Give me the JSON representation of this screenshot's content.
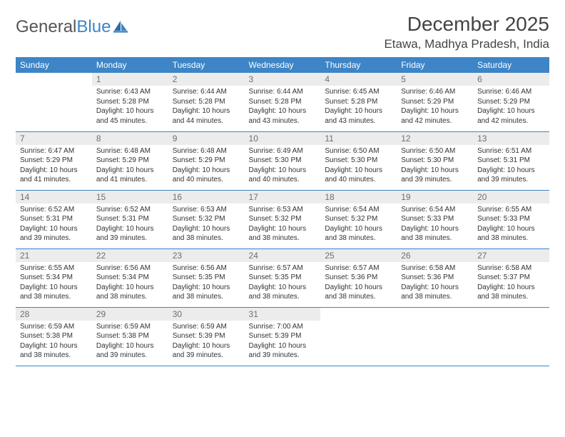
{
  "brand": {
    "name1": "General",
    "name2": "Blue"
  },
  "title": "December 2025",
  "location": "Etawa, Madhya Pradesh, India",
  "colors": {
    "accent": "#3d85c6",
    "daynum_bg": "#ececec",
    "daynum_fg": "#6f6f6f",
    "text": "#333333",
    "bg": "#ffffff"
  },
  "header_fontsize": 28,
  "location_fontsize": 17,
  "dayheader_fontsize": 12,
  "cell_fontsize": 10,
  "days_of_week": [
    "Sunday",
    "Monday",
    "Tuesday",
    "Wednesday",
    "Thursday",
    "Friday",
    "Saturday"
  ],
  "first_weekday_index": 1,
  "days": [
    {
      "n": 1,
      "sunrise": "6:43 AM",
      "sunset": "5:28 PM",
      "daylight": "10 hours and 45 minutes."
    },
    {
      "n": 2,
      "sunrise": "6:44 AM",
      "sunset": "5:28 PM",
      "daylight": "10 hours and 44 minutes."
    },
    {
      "n": 3,
      "sunrise": "6:44 AM",
      "sunset": "5:28 PM",
      "daylight": "10 hours and 43 minutes."
    },
    {
      "n": 4,
      "sunrise": "6:45 AM",
      "sunset": "5:28 PM",
      "daylight": "10 hours and 43 minutes."
    },
    {
      "n": 5,
      "sunrise": "6:46 AM",
      "sunset": "5:29 PM",
      "daylight": "10 hours and 42 minutes."
    },
    {
      "n": 6,
      "sunrise": "6:46 AM",
      "sunset": "5:29 PM",
      "daylight": "10 hours and 42 minutes."
    },
    {
      "n": 7,
      "sunrise": "6:47 AM",
      "sunset": "5:29 PM",
      "daylight": "10 hours and 41 minutes."
    },
    {
      "n": 8,
      "sunrise": "6:48 AM",
      "sunset": "5:29 PM",
      "daylight": "10 hours and 41 minutes."
    },
    {
      "n": 9,
      "sunrise": "6:48 AM",
      "sunset": "5:29 PM",
      "daylight": "10 hours and 40 minutes."
    },
    {
      "n": 10,
      "sunrise": "6:49 AM",
      "sunset": "5:30 PM",
      "daylight": "10 hours and 40 minutes."
    },
    {
      "n": 11,
      "sunrise": "6:50 AM",
      "sunset": "5:30 PM",
      "daylight": "10 hours and 40 minutes."
    },
    {
      "n": 12,
      "sunrise": "6:50 AM",
      "sunset": "5:30 PM",
      "daylight": "10 hours and 39 minutes."
    },
    {
      "n": 13,
      "sunrise": "6:51 AM",
      "sunset": "5:31 PM",
      "daylight": "10 hours and 39 minutes."
    },
    {
      "n": 14,
      "sunrise": "6:52 AM",
      "sunset": "5:31 PM",
      "daylight": "10 hours and 39 minutes."
    },
    {
      "n": 15,
      "sunrise": "6:52 AM",
      "sunset": "5:31 PM",
      "daylight": "10 hours and 39 minutes."
    },
    {
      "n": 16,
      "sunrise": "6:53 AM",
      "sunset": "5:32 PM",
      "daylight": "10 hours and 38 minutes."
    },
    {
      "n": 17,
      "sunrise": "6:53 AM",
      "sunset": "5:32 PM",
      "daylight": "10 hours and 38 minutes."
    },
    {
      "n": 18,
      "sunrise": "6:54 AM",
      "sunset": "5:32 PM",
      "daylight": "10 hours and 38 minutes."
    },
    {
      "n": 19,
      "sunrise": "6:54 AM",
      "sunset": "5:33 PM",
      "daylight": "10 hours and 38 minutes."
    },
    {
      "n": 20,
      "sunrise": "6:55 AM",
      "sunset": "5:33 PM",
      "daylight": "10 hours and 38 minutes."
    },
    {
      "n": 21,
      "sunrise": "6:55 AM",
      "sunset": "5:34 PM",
      "daylight": "10 hours and 38 minutes."
    },
    {
      "n": 22,
      "sunrise": "6:56 AM",
      "sunset": "5:34 PM",
      "daylight": "10 hours and 38 minutes."
    },
    {
      "n": 23,
      "sunrise": "6:56 AM",
      "sunset": "5:35 PM",
      "daylight": "10 hours and 38 minutes."
    },
    {
      "n": 24,
      "sunrise": "6:57 AM",
      "sunset": "5:35 PM",
      "daylight": "10 hours and 38 minutes."
    },
    {
      "n": 25,
      "sunrise": "6:57 AM",
      "sunset": "5:36 PM",
      "daylight": "10 hours and 38 minutes."
    },
    {
      "n": 26,
      "sunrise": "6:58 AM",
      "sunset": "5:36 PM",
      "daylight": "10 hours and 38 minutes."
    },
    {
      "n": 27,
      "sunrise": "6:58 AM",
      "sunset": "5:37 PM",
      "daylight": "10 hours and 38 minutes."
    },
    {
      "n": 28,
      "sunrise": "6:59 AM",
      "sunset": "5:38 PM",
      "daylight": "10 hours and 38 minutes."
    },
    {
      "n": 29,
      "sunrise": "6:59 AM",
      "sunset": "5:38 PM",
      "daylight": "10 hours and 39 minutes."
    },
    {
      "n": 30,
      "sunrise": "6:59 AM",
      "sunset": "5:39 PM",
      "daylight": "10 hours and 39 minutes."
    },
    {
      "n": 31,
      "sunrise": "7:00 AM",
      "sunset": "5:39 PM",
      "daylight": "10 hours and 39 minutes."
    }
  ],
  "labels": {
    "sunrise": "Sunrise:",
    "sunset": "Sunset:",
    "daylight": "Daylight:"
  }
}
